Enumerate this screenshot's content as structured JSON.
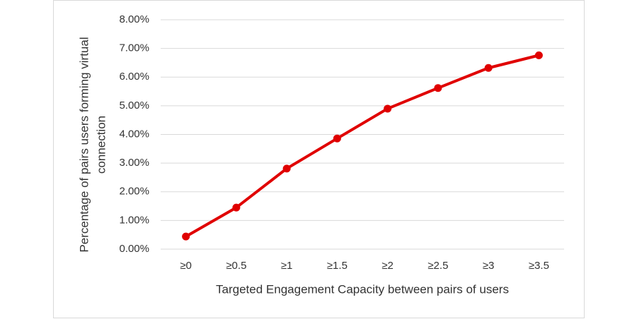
{
  "chart_data": {
    "type": "line",
    "x_label": "Targeted Engagement Capacity between pairs of users",
    "y_label": [
      "Percentage of pairs users forming virtual",
      "connection"
    ],
    "categories": [
      "≥0",
      "≥0.5",
      "≥1",
      "≥1.5",
      "≥2",
      "≥2.5",
      "≥3",
      "≥3.5"
    ],
    "series": [
      {
        "color": "#e00000",
        "values": [
          0.44,
          1.45,
          2.81,
          3.86,
          4.9,
          5.62,
          6.32,
          6.76
        ]
      }
    ],
    "ylim": [
      0,
      8
    ],
    "yticks": [
      {
        "value": 0,
        "label": "0.00%"
      },
      {
        "value": 1,
        "label": "1.00%"
      },
      {
        "value": 2,
        "label": "2.00%"
      },
      {
        "value": 3,
        "label": "3.00%"
      },
      {
        "value": 4,
        "label": "4.00%"
      },
      {
        "value": 5,
        "label": "5.00%"
      },
      {
        "value": 6,
        "label": "6.00%"
      },
      {
        "value": 7,
        "label": "7.00%"
      },
      {
        "value": 8,
        "label": "8.00%"
      }
    ],
    "grid": true
  }
}
